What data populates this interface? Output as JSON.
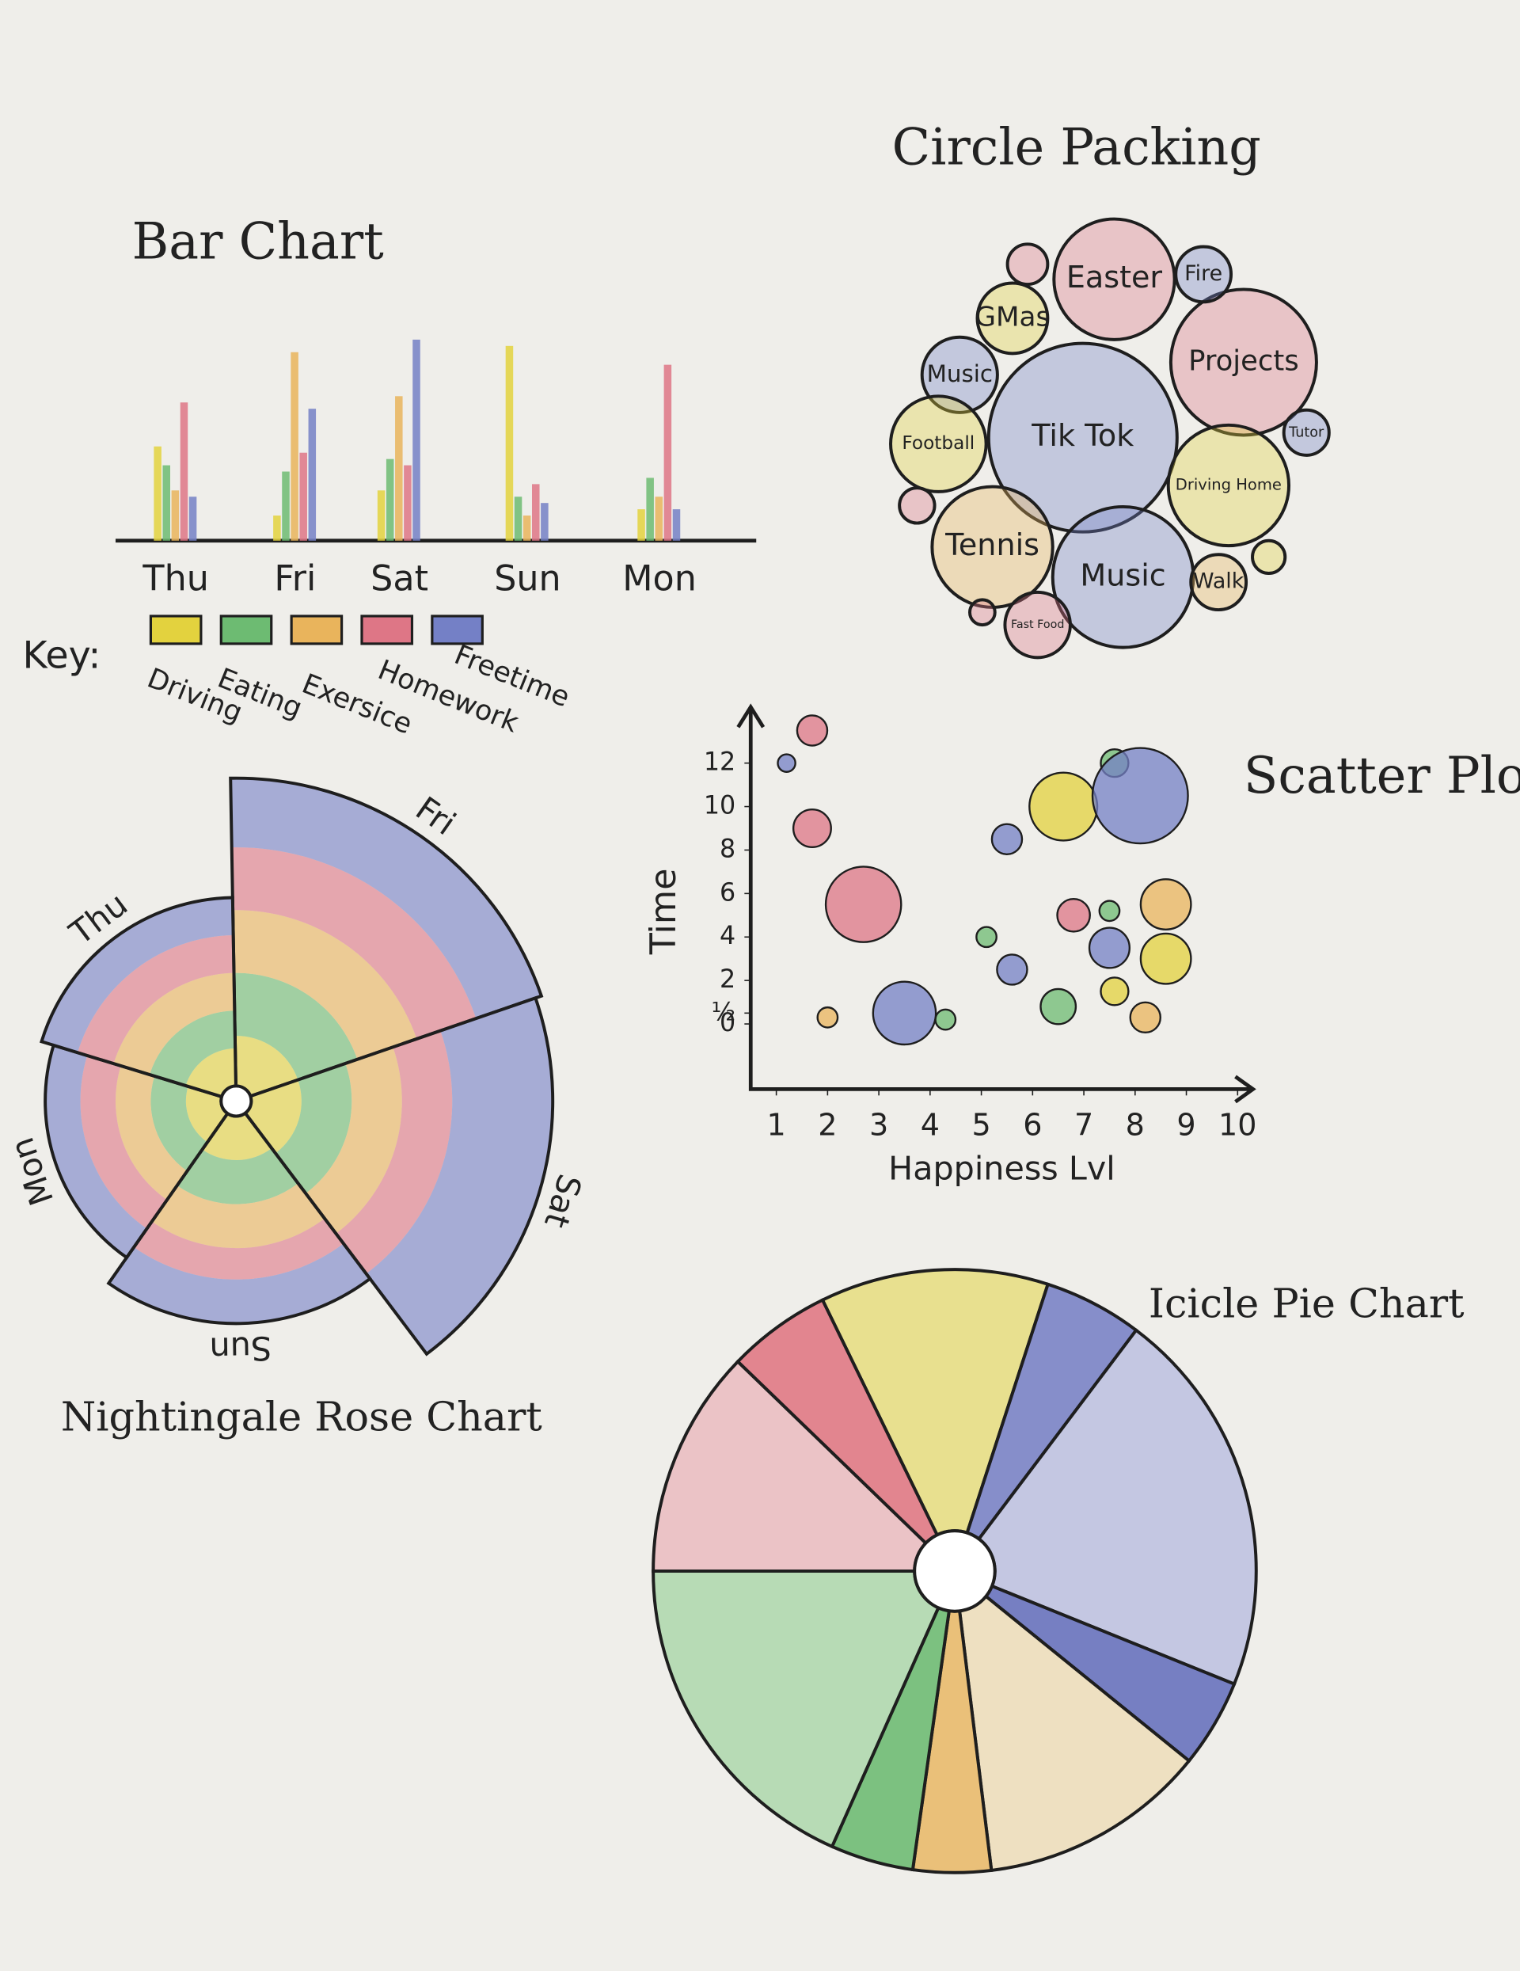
{
  "chart_data": [
    {
      "type": "bar",
      "title": "Bar Chart",
      "legend_title": "Key:",
      "categories": [
        "Thu",
        "Fri",
        "Sat",
        "Sun",
        "Mon"
      ],
      "series": [
        {
          "name": "Driving",
          "color": "#e3d23e",
          "values": [
            75,
            20,
            40,
            155,
            25
          ]
        },
        {
          "name": "Eating",
          "color": "#6dbb72",
          "values": [
            60,
            55,
            65,
            35,
            50
          ]
        },
        {
          "name": "Exersice",
          "color": "#e9b45c",
          "values": [
            40,
            150,
            115,
            20,
            35
          ]
        },
        {
          "name": "Homework",
          "color": "#de7686",
          "values": [
            110,
            70,
            60,
            45,
            140
          ]
        },
        {
          "name": "Freetime",
          "color": "#7480c6",
          "values": [
            35,
            105,
            160,
            30,
            25
          ]
        }
      ]
    },
    {
      "type": "packing",
      "title": "Circle Packing",
      "labels": [
        "Tik Tok",
        "Projects",
        "Easter",
        "Fire",
        "GMas",
        "Music",
        "Football",
        "Driving Home",
        "Tutor",
        "Tennis",
        "Music",
        "Walk",
        "Fast Food",
        null,
        null,
        null,
        null
      ],
      "values": [
        75,
        58,
        48,
        22,
        28,
        30,
        38,
        48,
        18,
        48,
        56,
        22,
        26,
        16,
        14,
        13,
        10
      ],
      "colors": [
        "#7480c6",
        "#de7686",
        "#de7686",
        "#7480c6",
        "#e3d23e",
        "#7480c6",
        "#e3d23e",
        "#e3d23e",
        "#7480c6",
        "#e9b45c",
        "#7480c6",
        "#e9b45c",
        "#de7686",
        "#de7686",
        "#de7686",
        "#e3d23e",
        "#de7686"
      ]
    },
    {
      "type": "scatter",
      "title": "Scatter Plot",
      "xlabel": "Happiness Lvl",
      "ylabel": "Time",
      "x": [
        1.7,
        1.2,
        1.7,
        2.7,
        2.0,
        3.5,
        4.3,
        5.5,
        5.1,
        5.6,
        6.8,
        6.5,
        6.6,
        7.6,
        7.5,
        7.5,
        7.6,
        8.2,
        8.1,
        8.6,
        8.6
      ],
      "y": [
        13.5,
        12,
        9,
        5.5,
        0.3,
        0.5,
        0.2,
        8.5,
        4,
        2.5,
        5,
        0.8,
        10,
        12,
        5.2,
        3.5,
        1.5,
        0.3,
        10.5,
        5.5,
        3
      ],
      "sizes": [
        12,
        7,
        15,
        30,
        8,
        25,
        8,
        12,
        8,
        12,
        13,
        14,
        27,
        11,
        8,
        16,
        11,
        12,
        38,
        20,
        20
      ],
      "colors": [
        "#de7686",
        "#7480c6",
        "#de7686",
        "#de7686",
        "#e9b45c",
        "#7480c6",
        "#6dbb72",
        "#7480c6",
        "#6dbb72",
        "#7480c6",
        "#de7686",
        "#6dbb72",
        "#e3d23e",
        "#6dbb72",
        "#6dbb72",
        "#7480c6",
        "#e3d23e",
        "#e9b45c",
        "#7480c6",
        "#e9b45c",
        "#e3d23e"
      ],
      "xlim": [
        0.5,
        10.3
      ],
      "xticks": [
        1,
        2,
        3,
        4,
        5,
        6,
        7,
        8,
        9,
        10
      ],
      "ylim": [
        -3,
        14
      ],
      "yticks": [
        12,
        10,
        8,
        6,
        4,
        2,
        {
          "value": 0.5,
          "label": "½"
        },
        0
      ]
    },
    {
      "type": "rose",
      "title": "Nightingale Rose Chart",
      "categories": [
        "Fri",
        "Sat",
        "Sun",
        "Mon",
        "Thu"
      ],
      "series": [
        {
          "name": "Driving",
          "color": "#e3d23e",
          "values": [
            40,
            40,
            35,
            28,
            30
          ]
        },
        {
          "name": "Eating",
          "color": "#6dbb72",
          "values": [
            50,
            40,
            35,
            28,
            30
          ]
        },
        {
          "name": "Exersice",
          "color": "#e9b45c",
          "values": [
            50,
            40,
            35,
            28,
            30
          ]
        },
        {
          "name": "Homework",
          "color": "#de7686",
          "values": [
            50,
            40,
            25,
            28,
            30
          ]
        },
        {
          "name": "Freetime",
          "color": "#7480c6",
          "values": [
            55,
            80,
            35,
            28,
            30
          ]
        }
      ]
    },
    {
      "type": "pie",
      "title": "Icicle Pie Chart",
      "startangle": -26,
      "values": [
        44,
        19,
        75,
        17,
        44,
        15,
        16,
        66,
        44,
        20
      ],
      "colors": [
        "#e6dc78",
        "#6b76c2",
        "#b9bde0",
        "#5863b8",
        "#eedcb6",
        "#e9b45c",
        "#5fb565",
        "#a9d6a8",
        "#eab8bd",
        "#de6a78"
      ]
    }
  ]
}
